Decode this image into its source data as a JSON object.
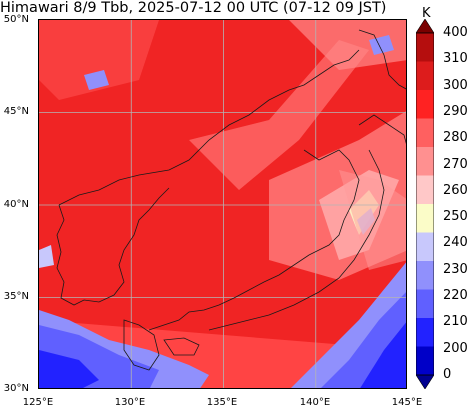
{
  "title": "Himawari 8/9 Tbb, 2025-07-12 00 UTC (07-12 09 JST)",
  "colorbar": {
    "unit": "K",
    "levels": [
      "400",
      "310",
      "300",
      "290",
      "280",
      "270",
      "260",
      "250",
      "240",
      "230",
      "220",
      "210",
      "200",
      "0"
    ],
    "colors": [
      "#7a0000",
      "#b50e0e",
      "#dd1c1c",
      "#ff2222",
      "#ff6060",
      "#ff9090",
      "#ffc8c8",
      "#fbfcc8",
      "#c8c8fc",
      "#9090fc",
      "#6060ff",
      "#2222ff",
      "#0000c8",
      "#000090"
    ]
  },
  "map": {
    "lat_labels": [
      "50°N",
      "45°N",
      "40°N",
      "35°N",
      "30°N"
    ],
    "lon_labels": [
      "125°E",
      "130°E",
      "135°E",
      "140°E",
      "145°E"
    ],
    "lat_range": [
      30,
      50
    ],
    "lon_range": [
      125,
      145
    ],
    "gridlines": true
  }
}
